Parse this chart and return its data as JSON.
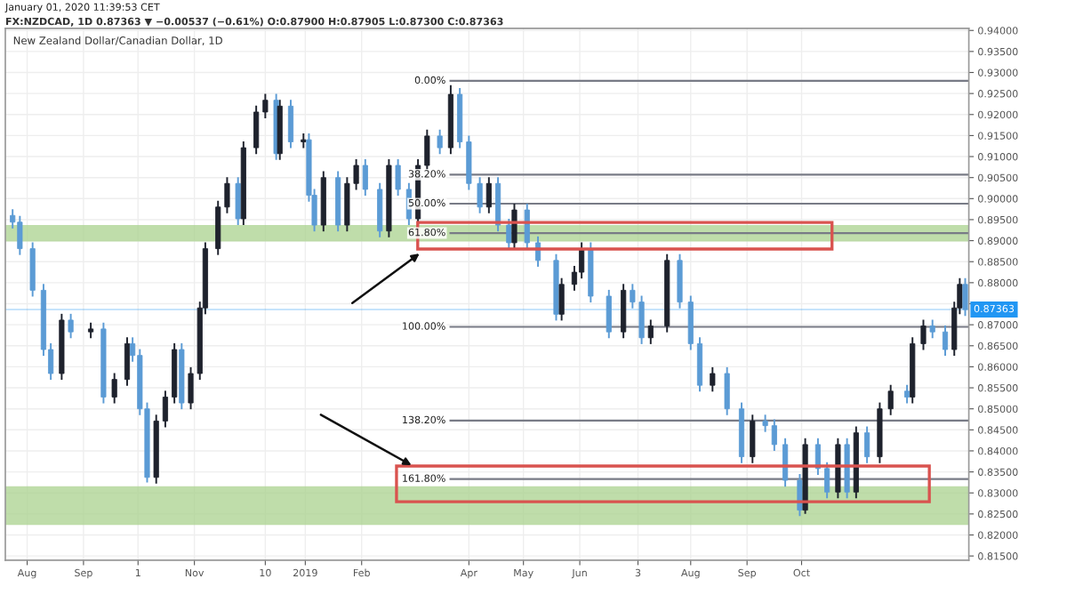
{
  "chart_data": {
    "type": "candlestick",
    "title": "New Zealand Dollar/Canadian Dollar, 1D",
    "annotations": [
      "January 01, 2020 11:39:53 CET",
      "FX:NZDCAD, 1D 0.87363 ▼ −0.00537 (−0.61%) O:0.87900 H:0.87905 L:0.87300 C:0.87363",
      {
        "text": "0.00%",
        "x": "2019-03-22",
        "y": 0.928
      },
      {
        "text": "38.20%",
        "x": "2019-03-22",
        "y": 0.9057
      },
      {
        "text": "50.00%",
        "x": "2019-03-22",
        "y": 0.8988
      },
      {
        "text": "61.80%",
        "x": "2019-03-22",
        "y": 0.8918
      },
      {
        "text": "100.00%",
        "x": "2019-03-22",
        "y": 0.8695
      },
      {
        "text": "138.20%",
        "x": "2019-03-22",
        "y": 0.8472
      },
      {
        "text": "161.80%",
        "x": "2019-03-22",
        "y": 0.8333
      }
    ],
    "x": [
      "2018-07-24",
      "2018-07-28",
      "2018-08-04",
      "2018-08-10",
      "2018-08-14",
      "2018-08-20",
      "2018-08-25",
      "2018-09-05",
      "2018-09-12",
      "2018-09-18",
      "2018-09-25",
      "2018-09-28",
      "2018-10-02",
      "2018-10-06",
      "2018-10-11",
      "2018-10-16",
      "2018-10-21",
      "2018-10-25",
      "2018-10-30",
      "2018-11-04",
      "2018-11-07",
      "2018-11-14",
      "2018-11-19",
      "2018-11-25",
      "2018-11-28",
      "2018-12-05",
      "2018-12-10",
      "2018-12-16",
      "2018-12-18",
      "2018-12-24",
      "2018-12-31",
      "2019-01-03",
      "2019-01-06",
      "2019-01-11",
      "2019-01-19",
      "2019-01-24",
      "2019-01-29",
      "2019-02-03",
      "2019-02-11",
      "2019-02-16",
      "2019-02-21",
      "2019-02-27",
      "2019-03-04",
      "2019-03-09",
      "2019-03-16",
      "2019-03-22",
      "2019-03-27",
      "2019-04-01",
      "2019-04-07",
      "2019-04-12",
      "2019-04-17",
      "2019-04-23",
      "2019-04-26",
      "2019-05-03",
      "2019-05-09",
      "2019-05-19",
      "2019-05-22",
      "2019-05-29",
      "2019-06-02",
      "2019-06-07",
      "2019-06-17",
      "2019-06-25",
      "2019-06-30",
      "2019-07-05",
      "2019-07-10",
      "2019-07-19",
      "2019-07-26",
      "2019-08-01",
      "2019-08-06",
      "2019-08-13",
      "2019-08-21",
      "2019-08-29",
      "2019-09-04",
      "2019-09-11",
      "2019-09-16",
      "2019-09-22",
      "2019-09-30",
      "2019-10-03",
      "2019-10-10",
      "2019-10-15",
      "2019-10-21",
      "2019-10-26",
      "2019-10-31",
      "2019-11-06",
      "2019-11-13",
      "2019-11-19",
      "2019-11-28",
      "2019-12-01",
      "2019-12-07",
      "2019-12-12",
      "2019-12-19",
      "2019-12-24",
      "2019-12-27",
      "2019-12-30"
    ],
    "ohlc": [
      [
        0.896,
        0.8975,
        0.8929,
        0.8944
      ],
      [
        0.8944,
        0.8959,
        0.8866,
        0.8881
      ],
      [
        0.8881,
        0.8896,
        0.8767,
        0.8782
      ],
      [
        0.8782,
        0.8797,
        0.8626,
        0.8641
      ],
      [
        0.8641,
        0.8656,
        0.8569,
        0.8584
      ],
      [
        0.8584,
        0.8726,
        0.8569,
        0.8711
      ],
      [
        0.8711,
        0.8726,
        0.8668,
        0.8683
      ],
      [
        0.8683,
        0.8705,
        0.8668,
        0.869
      ],
      [
        0.869,
        0.8705,
        0.8513,
        0.8528
      ],
      [
        0.8528,
        0.8585,
        0.8513,
        0.857
      ],
      [
        0.857,
        0.867,
        0.8555,
        0.8655
      ],
      [
        0.8655,
        0.867,
        0.8612,
        0.8627
      ],
      [
        0.8627,
        0.8642,
        0.8485,
        0.85
      ],
      [
        0.85,
        0.8515,
        0.8325,
        0.8337
      ],
      [
        0.8337,
        0.8486,
        0.8322,
        0.8471
      ],
      [
        0.8471,
        0.8543,
        0.8456,
        0.8528
      ],
      [
        0.8528,
        0.8656,
        0.8513,
        0.8641
      ],
      [
        0.8641,
        0.8656,
        0.8499,
        0.8514
      ],
      [
        0.8514,
        0.8599,
        0.8499,
        0.8584
      ],
      [
        0.8584,
        0.8755,
        0.8569,
        0.874
      ],
      [
        0.874,
        0.8896,
        0.8725,
        0.8881
      ],
      [
        0.8881,
        0.8995,
        0.8866,
        0.898
      ],
      [
        0.898,
        0.9051,
        0.8965,
        0.9036
      ],
      [
        0.9036,
        0.9051,
        0.8937,
        0.8952
      ],
      [
        0.8952,
        0.9136,
        0.8937,
        0.9121
      ],
      [
        0.9121,
        0.9221,
        0.9106,
        0.9206
      ],
      [
        0.9206,
        0.9249,
        0.9191,
        0.9234
      ],
      [
        0.9234,
        0.9249,
        0.9092,
        0.9107
      ],
      [
        0.9107,
        0.9235,
        0.9092,
        0.922
      ],
      [
        0.922,
        0.9235,
        0.912,
        0.9135
      ],
      [
        0.9135,
        0.9155,
        0.912,
        0.914
      ],
      [
        0.914,
        0.9155,
        0.8993,
        0.9008
      ],
      [
        0.9008,
        0.9023,
        0.8922,
        0.8937
      ],
      [
        0.8937,
        0.9065,
        0.8922,
        0.905
      ],
      [
        0.905,
        0.9065,
        0.8922,
        0.8937
      ],
      [
        0.8937,
        0.9051,
        0.8922,
        0.9036
      ],
      [
        0.9036,
        0.9094,
        0.9021,
        0.9079
      ],
      [
        0.9079,
        0.9094,
        0.9007,
        0.9022
      ],
      [
        0.9022,
        0.9037,
        0.8908,
        0.8923
      ],
      [
        0.8923,
        0.9094,
        0.8908,
        0.9079
      ],
      [
        0.9079,
        0.9094,
        0.9007,
        0.9022
      ],
      [
        0.9022,
        0.9037,
        0.8937,
        0.8952
      ],
      [
        0.8952,
        0.9094,
        0.8937,
        0.9079
      ],
      [
        0.9079,
        0.9164,
        0.9064,
        0.9149
      ],
      [
        0.9149,
        0.9164,
        0.9106,
        0.9121
      ],
      [
        0.9121,
        0.927,
        0.9106,
        0.9248
      ],
      [
        0.9248,
        0.9263,
        0.912,
        0.9135
      ],
      [
        0.9135,
        0.915,
        0.9021,
        0.9036
      ],
      [
        0.9036,
        0.9051,
        0.8965,
        0.898
      ],
      [
        0.898,
        0.9051,
        0.8965,
        0.9036
      ],
      [
        0.9036,
        0.9051,
        0.8922,
        0.8937
      ],
      [
        0.8937,
        0.8952,
        0.888,
        0.8895
      ],
      [
        0.8895,
        0.8988,
        0.888,
        0.8973
      ],
      [
        0.8973,
        0.8988,
        0.888,
        0.8895
      ],
      [
        0.8895,
        0.891,
        0.8838,
        0.8853
      ],
      [
        0.8853,
        0.8868,
        0.871,
        0.8725
      ],
      [
        0.8725,
        0.8811,
        0.871,
        0.8796
      ],
      [
        0.8796,
        0.884,
        0.8781,
        0.8825
      ],
      [
        0.8825,
        0.8896,
        0.881,
        0.8881
      ],
      [
        0.8881,
        0.8896,
        0.8753,
        0.8768
      ],
      [
        0.8768,
        0.8783,
        0.8668,
        0.8683
      ],
      [
        0.8683,
        0.8797,
        0.8668,
        0.8782
      ],
      [
        0.8782,
        0.8797,
        0.8739,
        0.8754
      ],
      [
        0.8754,
        0.8769,
        0.8654,
        0.8669
      ],
      [
        0.8669,
        0.8712,
        0.8654,
        0.8697
      ],
      [
        0.8697,
        0.8868,
        0.8682,
        0.8853
      ],
      [
        0.8853,
        0.8868,
        0.8739,
        0.8754
      ],
      [
        0.8754,
        0.8769,
        0.864,
        0.8655
      ],
      [
        0.8655,
        0.867,
        0.8541,
        0.8556
      ],
      [
        0.8556,
        0.8599,
        0.8541,
        0.8584
      ],
      [
        0.8584,
        0.8599,
        0.8485,
        0.85
      ],
      [
        0.85,
        0.8515,
        0.8371,
        0.8386
      ],
      [
        0.8386,
        0.8486,
        0.8371,
        0.8471
      ],
      [
        0.8471,
        0.8486,
        0.8445,
        0.846
      ],
      [
        0.846,
        0.8475,
        0.84,
        0.8415
      ],
      [
        0.8415,
        0.843,
        0.8315,
        0.833
      ],
      [
        0.833,
        0.8345,
        0.8245,
        0.8259
      ],
      [
        0.8259,
        0.843,
        0.825,
        0.8415
      ],
      [
        0.8415,
        0.843,
        0.8343,
        0.8358
      ],
      [
        0.8358,
        0.8373,
        0.8287,
        0.8302
      ],
      [
        0.8302,
        0.843,
        0.8287,
        0.8415
      ],
      [
        0.8415,
        0.843,
        0.8287,
        0.8302
      ],
      [
        0.8302,
        0.8458,
        0.8287,
        0.8443
      ],
      [
        0.8443,
        0.8458,
        0.8371,
        0.8386
      ],
      [
        0.8386,
        0.8515,
        0.8371,
        0.85
      ],
      [
        0.85,
        0.8557,
        0.8485,
        0.8542
      ],
      [
        0.8542,
        0.8557,
        0.8513,
        0.8528
      ],
      [
        0.8528,
        0.867,
        0.8513,
        0.8655
      ],
      [
        0.8655,
        0.8712,
        0.864,
        0.8697
      ],
      [
        0.8697,
        0.8712,
        0.8668,
        0.8683
      ],
      [
        0.8683,
        0.8698,
        0.8626,
        0.8641
      ],
      [
        0.8641,
        0.8755,
        0.8626,
        0.874
      ],
      [
        0.874,
        0.8811,
        0.8725,
        0.8796
      ],
      [
        0.8796,
        0.8811,
        0.8721,
        0.8736
      ]
    ],
    "colors": [
      "#5b9bd5",
      "#5b9bd5",
      "#5b9bd5",
      "#5b9bd5",
      "#5b9bd5",
      "#1e222d",
      "#5b9bd5",
      "#1e222d",
      "#5b9bd5",
      "#1e222d",
      "#1e222d",
      "#5b9bd5",
      "#5b9bd5",
      "#5b9bd5",
      "#1e222d",
      "#1e222d",
      "#1e222d",
      "#5b9bd5",
      "#1e222d",
      "#1e222d",
      "#1e222d",
      "#1e222d",
      "#1e222d",
      "#5b9bd5",
      "#1e222d",
      "#1e222d",
      "#1e222d",
      "#5b9bd5",
      "#1e222d",
      "#5b9bd5",
      "#1e222d",
      "#5b9bd5",
      "#5b9bd5",
      "#1e222d",
      "#5b9bd5",
      "#1e222d",
      "#1e222d",
      "#5b9bd5",
      "#5b9bd5",
      "#1e222d",
      "#5b9bd5",
      "#5b9bd5",
      "#1e222d",
      "#1e222d",
      "#5b9bd5",
      "#1e222d",
      "#5b9bd5",
      "#5b9bd5",
      "#5b9bd5",
      "#1e222d",
      "#5b9bd5",
      "#5b9bd5",
      "#1e222d",
      "#5b9bd5",
      "#5b9bd5",
      "#5b9bd5",
      "#1e222d",
      "#1e222d",
      "#1e222d",
      "#5b9bd5",
      "#5b9bd5",
      "#1e222d",
      "#5b9bd5",
      "#5b9bd5",
      "#1e222d",
      "#1e222d",
      "#5b9bd5",
      "#5b9bd5",
      "#5b9bd5",
      "#1e222d",
      "#5b9bd5",
      "#5b9bd5",
      "#1e222d",
      "#5b9bd5",
      "#5b9bd5",
      "#5b9bd5",
      "#5b9bd5",
      "#1e222d",
      "#5b9bd5",
      "#5b9bd5",
      "#1e222d",
      "#5b9bd5",
      "#1e222d",
      "#5b9bd5",
      "#1e222d",
      "#1e222d",
      "#5b9bd5",
      "#1e222d",
      "#1e222d",
      "#5b9bd5",
      "#5b9bd5",
      "#1e222d",
      "#1e222d",
      "#5b9bd5"
    ],
    "xlim": [
      "2018-07-20",
      "2020-01-01"
    ],
    "xticks": [
      {
        "value": "2018-08-01",
        "label": "Aug"
      },
      {
        "value": "2018-09-01",
        "label": "Sep"
      },
      {
        "value": "2018-10-01",
        "label": "1"
      },
      {
        "value": "2018-11-01",
        "label": "Nov"
      },
      {
        "value": "2018-12-10",
        "label": "10"
      },
      {
        "value": "2019-01-01",
        "label": "2019"
      },
      {
        "value": "2019-02-01",
        "label": "Feb"
      },
      {
        "value": "2019-04-01",
        "label": "Apr"
      },
      {
        "value": "2019-05-01",
        "label": "May"
      },
      {
        "value": "2019-06-01",
        "label": "Jun"
      },
      {
        "value": "2019-07-03",
        "label": "3"
      },
      {
        "value": "2019-08-01",
        "label": "Aug"
      },
      {
        "value": "2019-09-01",
        "label": "Sep"
      },
      {
        "value": "2019-10-01",
        "label": "Oct"
      }
    ],
    "ylim": [
      0.814,
      0.9405
    ],
    "yticks": [
      {
        "value": 0.815,
        "label": "0.81500"
      },
      {
        "value": 0.82,
        "label": "0.82000"
      },
      {
        "value": 0.825,
        "label": "0.82500"
      },
      {
        "value": 0.83,
        "label": "0.83000"
      },
      {
        "value": 0.835,
        "label": "0.83500"
      },
      {
        "value": 0.84,
        "label": "0.84000"
      },
      {
        "value": 0.845,
        "label": "0.84500"
      },
      {
        "value": 0.85,
        "label": "0.85000"
      },
      {
        "value": 0.855,
        "label": "0.85500"
      },
      {
        "value": 0.86,
        "label": "0.86000"
      },
      {
        "value": 0.865,
        "label": "0.86500"
      },
      {
        "value": 0.87,
        "label": "0.87000"
      },
      {
        "value": 0.875,
        "label": null
      },
      {
        "value": 0.88,
        "label": "0.88000"
      },
      {
        "value": 0.885,
        "label": "0.88500"
      },
      {
        "value": 0.89,
        "label": "0.89000"
      },
      {
        "value": 0.895,
        "label": "0.89500"
      },
      {
        "value": 0.9,
        "label": "0.90000"
      },
      {
        "value": 0.905,
        "label": "0.90500"
      },
      {
        "value": 0.91,
        "label": "0.91000"
      },
      {
        "value": 0.915,
        "label": "0.91500"
      },
      {
        "value": 0.92,
        "label": "0.92000"
      },
      {
        "value": 0.925,
        "label": "0.92500"
      },
      {
        "value": 0.93,
        "label": "0.93000"
      },
      {
        "value": 0.935,
        "label": "0.93500"
      },
      {
        "value": 0.94,
        "label": "0.94000"
      }
    ],
    "grid": true,
    "ref_lines": [
      {
        "axis": "y",
        "value": 0.928,
        "color": "#787b86"
      },
      {
        "axis": "y",
        "value": 0.9057,
        "color": "#787b86"
      },
      {
        "axis": "y",
        "value": 0.8988,
        "color": "#787b86"
      },
      {
        "axis": "y",
        "value": 0.8918,
        "color": "#787b86"
      },
      {
        "axis": "y",
        "value": 0.8695,
        "color": "#787b86"
      },
      {
        "axis": "y",
        "value": 0.8472,
        "color": "#787b86"
      },
      {
        "axis": "y",
        "value": 0.8333,
        "color": "#787b86"
      },
      {
        "axis": "y",
        "value": 0.87363,
        "label": "0.87363",
        "color": "#2196f3"
      }
    ],
    "bands": [
      {
        "axis": "y",
        "from": 0.8898,
        "to": 0.8937,
        "color": "#a9d18e"
      },
      {
        "axis": "y",
        "from": 0.8224,
        "to": 0.8316,
        "color": "#a9d18e"
      }
    ]
  }
}
